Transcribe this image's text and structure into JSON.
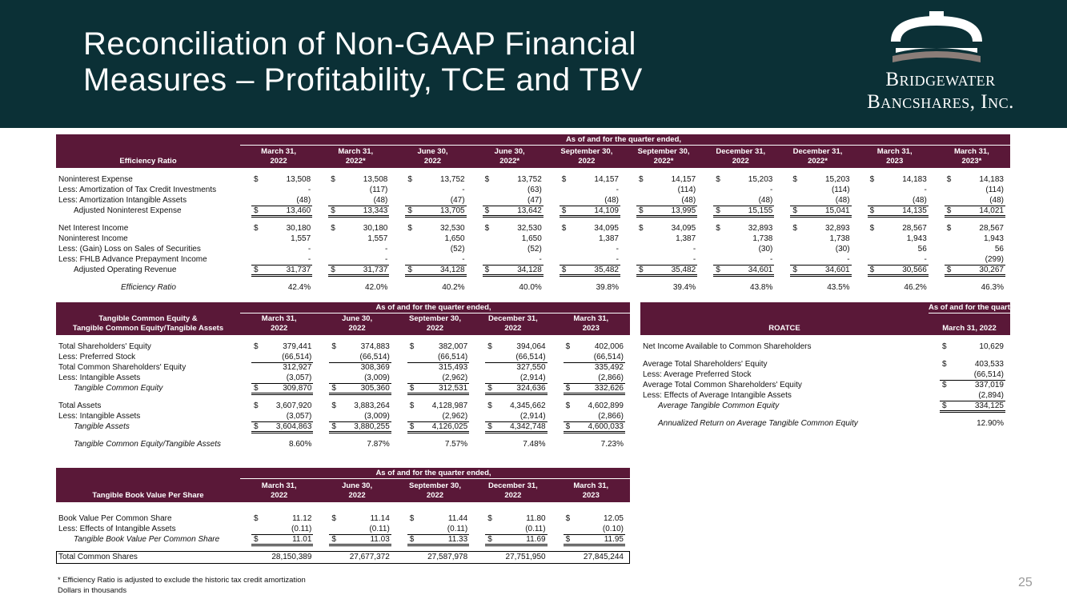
{
  "header": {
    "title": [
      "Reconciliation of Non-GAAP Financial",
      "Measures – Profitability, TCE and TBV"
    ],
    "logo": [
      "Bridgewater",
      "Bancshares, Inc."
    ]
  },
  "tables": {
    "efficiency": {
      "super": "As of and for the quarter ended,",
      "label_header": [
        "Efficiency Ratio"
      ],
      "currency": "$",
      "columns": [
        [
          "March 31,",
          "2022"
        ],
        [
          "March 31,",
          "2022*"
        ],
        [
          "June 30,",
          "2022"
        ],
        [
          "June 30,",
          "2022*"
        ],
        [
          "September 30,",
          "2022"
        ],
        [
          "September 30,",
          "2022*"
        ],
        [
          "December 31,",
          "2022"
        ],
        [
          "December 31,",
          "2022*"
        ],
        [
          "March 31,",
          "2023"
        ],
        [
          "March 31,",
          "2023*"
        ]
      ],
      "rows": [
        {
          "label": "Noninterest Expense",
          "dollar": true,
          "cells": [
            "13,508",
            "13,508",
            "13,752",
            "13,752",
            "14,157",
            "14,157",
            "15,203",
            "15,203",
            "14,183",
            "14,183"
          ]
        },
        {
          "label": "Less: Amortization of Tax Credit Investments",
          "cells": [
            "-",
            "(117)",
            "-",
            "(63)",
            "-",
            "(114)",
            "-",
            "(114)",
            "-",
            "(114)"
          ]
        },
        {
          "label": "Less: Amortization Intangible Assets",
          "cells": [
            "(48)",
            "(48)",
            "(47)",
            "(47)",
            "(48)",
            "(48)",
            "(48)",
            "(48)",
            "(48)",
            "(48)"
          ]
        },
        {
          "label": "Adjusted Noninterest Expense",
          "indent": 1,
          "dollar": true,
          "rule": true,
          "double": true,
          "cells": [
            "13,460",
            "13,343",
            "13,705",
            "13,642",
            "14,109",
            "13,995",
            "15,155",
            "15,041",
            "14,135",
            "14,021"
          ]
        },
        {
          "label": "Net Interest Income",
          "gap": true,
          "dollar": true,
          "cells": [
            "30,180",
            "30,180",
            "32,530",
            "32,530",
            "34,095",
            "34,095",
            "32,893",
            "32,893",
            "28,567",
            "28,567"
          ]
        },
        {
          "label": "Noninterest Income",
          "cells": [
            "1,557",
            "1,557",
            "1,650",
            "1,650",
            "1,387",
            "1,387",
            "1,738",
            "1,738",
            "1,943",
            "1,943"
          ]
        },
        {
          "label": "Less: (Gain) Loss on Sales of Securities",
          "cells": [
            "-",
            "-",
            "(52)",
            "(52)",
            "-",
            "-",
            "(30)",
            "(30)",
            "56",
            "56"
          ]
        },
        {
          "label": "Less: FHLB Advance Prepayment Income",
          "cells": [
            "-",
            "-",
            "-",
            "-",
            "-",
            "-",
            "-",
            "-",
            "-",
            "(299)"
          ]
        },
        {
          "label": "Adjusted Operating Revenue",
          "indent": 1,
          "dollar": true,
          "rule": true,
          "double": true,
          "cells": [
            "31,737",
            "31,737",
            "34,128",
            "34,128",
            "35,482",
            "35,482",
            "34,601",
            "34,601",
            "30,566",
            "30,267"
          ]
        },
        {
          "label": "Efficiency Ratio",
          "gap": true,
          "indent": 2,
          "italic": true,
          "cells": [
            "42.4%",
            "42.0%",
            "40.2%",
            "40.0%",
            "39.8%",
            "39.4%",
            "43.8%",
            "43.5%",
            "46.2%",
            "46.3%"
          ]
        }
      ]
    },
    "tce": {
      "super": "As of and for the quarter ended,",
      "label_header": [
        "Tangible Common Equity &",
        "Tangible Common Equity/Tangible Assets"
      ],
      "currency": "$",
      "columns": [
        [
          "March 31,",
          "2022"
        ],
        [
          "June 30,",
          "2022"
        ],
        [
          "September 30,",
          "2022"
        ],
        [
          "December 31,",
          "2022"
        ],
        [
          "March 31,",
          "2023"
        ]
      ],
      "rows": [
        {
          "label": "Total Shareholders' Equity",
          "dollar": true,
          "cells": [
            "379,441",
            "374,883",
            "382,007",
            "394,064",
            "402,006"
          ]
        },
        {
          "label": "Less: Preferred Stock",
          "cells": [
            "(66,514)",
            "(66,514)",
            "(66,514)",
            "(66,514)",
            "(66,514)"
          ]
        },
        {
          "label": "Total Common Shareholders' Equity",
          "rule": true,
          "cells": [
            "312,927",
            "308,369",
            "315,493",
            "327,550",
            "335,492"
          ]
        },
        {
          "label": "Less: Intangible Assets",
          "cells": [
            "(3,057)",
            "(3,009)",
            "(2,962)",
            "(2,914)",
            "(2,866)"
          ]
        },
        {
          "label": "Tangible Common Equity",
          "indent": 1,
          "italic": true,
          "dollar": true,
          "rule": true,
          "double": true,
          "cells": [
            "309,870",
            "305,360",
            "312,531",
            "324,636",
            "332,626"
          ]
        },
        {
          "label": "Total Assets",
          "gap": true,
          "dollar": true,
          "cells": [
            "3,607,920",
            "3,883,264",
            "4,128,987",
            "4,345,662",
            "4,602,899"
          ]
        },
        {
          "label": "Less: Intangible Assets",
          "cells": [
            "(3,057)",
            "(3,009)",
            "(2,962)",
            "(2,914)",
            "(2,866)"
          ]
        },
        {
          "label": "Tangible Assets",
          "indent": 1,
          "italic": true,
          "dollar": true,
          "rule": true,
          "double": true,
          "cells": [
            "3,604,863",
            "3,880,255",
            "4,126,025",
            "4,342,748",
            "4,600,033"
          ]
        },
        {
          "label": "Tangible Common Equity/Tangible Assets",
          "gap": true,
          "indent": 1,
          "italic": true,
          "cells": [
            "8.60%",
            "7.87%",
            "7.57%",
            "7.48%",
            "7.23%"
          ]
        }
      ]
    },
    "roatce": {
      "super": "As of and for the quarter ended,",
      "label_header": [
        "ROATCE"
      ],
      "currency": "$",
      "columns": [
        [
          "March 31, 2022"
        ]
      ],
      "rows": [
        {
          "label": "Net Income Available to Common Shareholders",
          "dollar": true,
          "cells": [
            "10,629"
          ]
        },
        {
          "label": "Average Total Shareholders' Equity",
          "gap": true,
          "dollar": true,
          "cells": [
            "403,533"
          ]
        },
        {
          "label": "Less: Average Preferred Stock",
          "cells": [
            "(66,514)"
          ]
        },
        {
          "label": "Average Total Common Shareholders' Equity",
          "dollar": true,
          "rule": true,
          "cells": [
            "337,019"
          ]
        },
        {
          "label": "Less: Effects of Average Intangible Assets",
          "cells": [
            "(2,894)"
          ]
        },
        {
          "label": "Average Tangible Common Equity",
          "indent": 1,
          "italic": true,
          "dollar": true,
          "rule": true,
          "double": true,
          "cells": [
            "334,125"
          ]
        },
        {
          "label": "Annualized Return on Average Tangible Common Equity",
          "gap": true,
          "indent": 1,
          "italic": true,
          "cells": [
            "12.90%"
          ]
        }
      ]
    },
    "tbv": {
      "super": "As of and for the quarter ended,",
      "label_header": [
        "Tangible Book Value Per Share"
      ],
      "currency": "$",
      "columns": [
        [
          "March 31,",
          "2022"
        ],
        [
          "June 30,",
          "2022"
        ],
        [
          "September 30,",
          "2022"
        ],
        [
          "December 31,",
          "2022"
        ],
        [
          "March 31,",
          "2023"
        ]
      ],
      "rows": [
        {
          "label": "Book Value Per Common Share",
          "dollar": true,
          "cells": [
            "11.12",
            "11.14",
            "11.44",
            "11.80",
            "12.05"
          ]
        },
        {
          "label": "Less: Effects of Intangible Assets",
          "cells": [
            "(0.11)",
            "(0.11)",
            "(0.11)",
            "(0.11)",
            "(0.10)"
          ]
        },
        {
          "label": "Tangible Book Value Per Common Share",
          "indent": 1,
          "italic": true,
          "dollar": true,
          "rule": true,
          "double": true,
          "cells": [
            "11.01",
            "11.03",
            "11.33",
            "11.69",
            "11.95"
          ]
        },
        {
          "label": "Total Common Shares",
          "gap": true,
          "boxed": true,
          "cells": [
            "28,150,389",
            "27,677,372",
            "27,587,978",
            "27,751,950",
            "27,845,244"
          ]
        }
      ]
    }
  },
  "footnotes": [
    "* Efficiency Ratio is adjusted to exclude the historic tax credit amortization",
    "Dollars in thousands"
  ],
  "page_number": "25"
}
